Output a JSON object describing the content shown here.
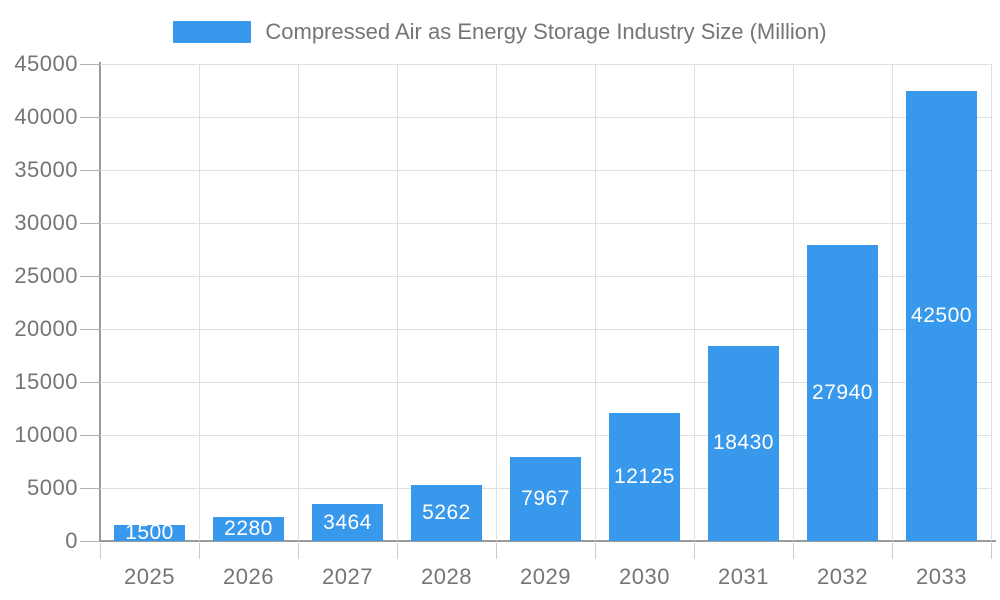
{
  "legend": {
    "label": "Compressed Air as Energy Storage Industry Size (Million)",
    "swatch_color": "#3898EC"
  },
  "chart_data": {
    "type": "bar",
    "title": "Compressed Air as Energy Storage Industry Size (Million)",
    "series_name": "Compressed Air as Energy Storage Industry Size (Million)",
    "categories": [
      "2025",
      "2026",
      "2027",
      "2028",
      "2029",
      "2030",
      "2031",
      "2032",
      "2033"
    ],
    "values": [
      1500,
      2280,
      3464,
      5262,
      7967,
      12125,
      18430,
      27940,
      42500
    ],
    "xlabel": "",
    "ylabel": "",
    "ylim": [
      0,
      45000
    ],
    "ytick_interval": 5000,
    "yticks": [
      0,
      5000,
      10000,
      15000,
      20000,
      25000,
      30000,
      35000,
      40000,
      45000
    ],
    "grid": true,
    "legend_position": "top-center",
    "data_labels_inside_bars": true,
    "colors": {
      "bar": "#3898EC",
      "value_label_text": "#ffffff",
      "axis_text": "#757575",
      "axis_line": "#9a9a9a",
      "gridline": "#e0e0e0"
    }
  }
}
